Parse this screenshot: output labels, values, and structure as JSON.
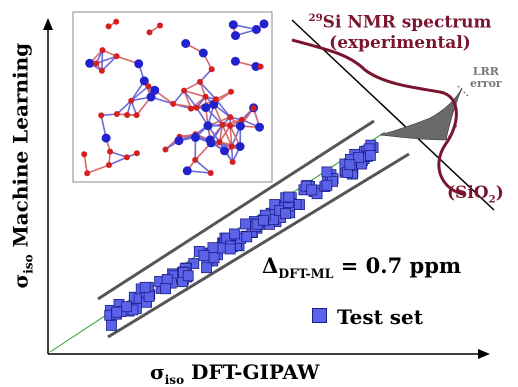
{
  "axes": {
    "x_symbol": "σ",
    "x_sub": "iso",
    "x_label": " DFT-GIPAW",
    "y_symbol": "σ",
    "y_sub": "iso",
    "y_label": " Machine Learning"
  },
  "nmr": {
    "isotope": "29",
    "line1": "Si NMR spectrum",
    "line2": "(experimental)"
  },
  "material": {
    "open": "(SiO",
    "sub": "2",
    "close": ")"
  },
  "lrr": {
    "line1": "LRR",
    "line2": "error"
  },
  "delta": {
    "symbol": "Δ",
    "sub": "DFT-ML",
    "value": " = 0.7 ppm"
  },
  "legend": {
    "label": "Test set"
  },
  "colors": {
    "marker_fill": "#5c62e8",
    "marker_edge": "#1b1f8a",
    "spectrum": "#7a1530",
    "diagonal": "#2e9e2e",
    "band": "#555555",
    "oxygen": "#d42020",
    "silicon": "#2222cc"
  }
}
